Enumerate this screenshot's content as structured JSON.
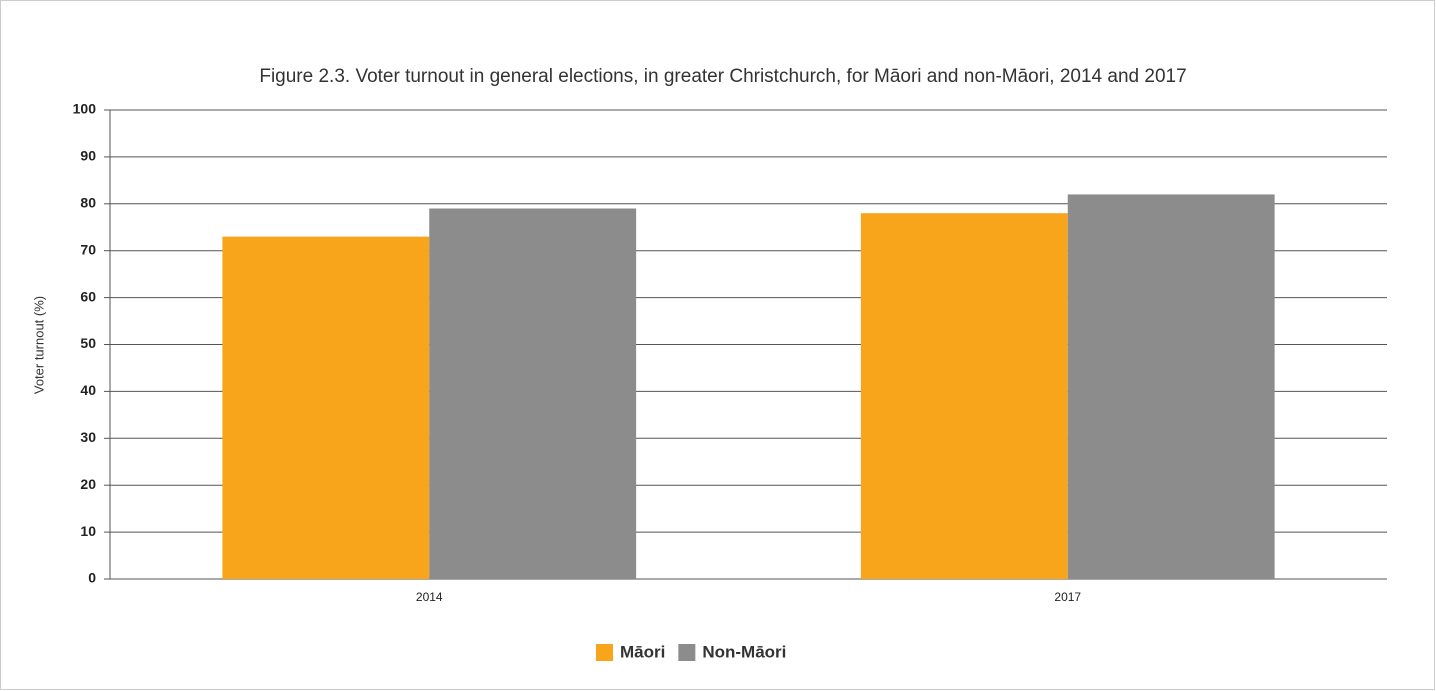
{
  "chart_data": {
    "type": "bar",
    "title": "Figure 2.3. Voter turnout in general elections, in greater Christchurch, for Māori and non-Māori, 2014 and 2017",
    "y_label": "Voter turnout (%)",
    "categories": [
      "2014",
      "2017"
    ],
    "series": [
      {
        "name": "Māori",
        "color": "#f9a51b",
        "values": [
          73,
          78
        ]
      },
      {
        "name": "Non-Māori",
        "color": "#8c8c8c",
        "values": [
          79,
          82
        ]
      }
    ],
    "ylim": [
      0,
      100
    ],
    "yticks": [
      0,
      10,
      20,
      30,
      40,
      50,
      60,
      70,
      80,
      90,
      100
    ],
    "grid": true,
    "legend": "bottom"
  }
}
